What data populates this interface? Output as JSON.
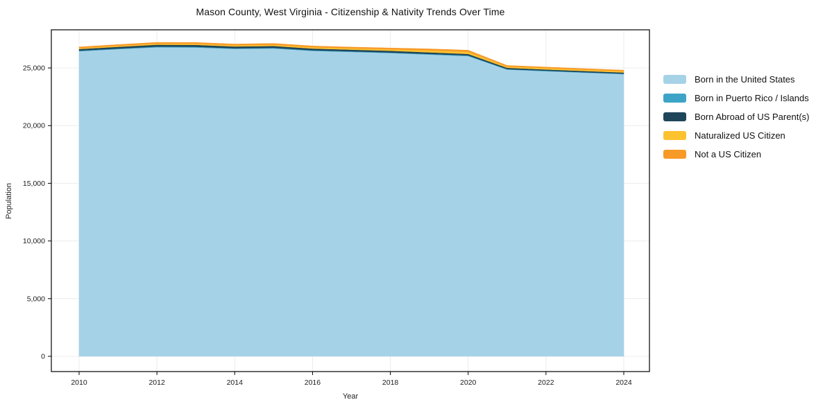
{
  "page": {
    "background_color": "#ffffff"
  },
  "chart_data": {
    "type": "area",
    "stacked": true,
    "title": "Mason County, West Virginia - Citizenship & Nativity Trends Over Time",
    "xlabel": "Year",
    "ylabel": "Population",
    "grid": true,
    "legend_position": "right-outside",
    "x": [
      2010,
      2011,
      2012,
      2013,
      2014,
      2015,
      2016,
      2017,
      2018,
      2019,
      2020,
      2021,
      2022,
      2023,
      2024
    ],
    "x_ticks": [
      2010,
      2012,
      2014,
      2016,
      2018,
      2020,
      2022,
      2024
    ],
    "y_ticks": [
      0,
      5000,
      10000,
      15000,
      20000,
      25000
    ],
    "y_tick_labels": [
      "0",
      "5,000",
      "10,000",
      "15,000",
      "20,000",
      "25,000"
    ],
    "ylim": [
      0,
      28300
    ],
    "series": [
      {
        "name": "Born in the United States",
        "color": "#a6d2e7",
        "values": [
          26450,
          26630,
          26790,
          26770,
          26650,
          26690,
          26480,
          26390,
          26290,
          26160,
          26030,
          24860,
          24720,
          24590,
          24460
        ]
      },
      {
        "name": "Born in Puerto Rico / Islands",
        "color": "#3da4c7",
        "values": [
          50,
          55,
          60,
          60,
          55,
          55,
          55,
          50,
          50,
          55,
          60,
          40,
          45,
          40,
          45
        ]
      },
      {
        "name": "Born Abroad of US Parent(s)",
        "color": "#1f455a",
        "values": [
          140,
          150,
          165,
          170,
          160,
          160,
          150,
          145,
          150,
          140,
          125,
          110,
          100,
          105,
          100
        ]
      },
      {
        "name": "Naturalized US Citizen",
        "color": "#fdc230",
        "values": [
          80,
          85,
          90,
          95,
          100,
          105,
          110,
          115,
          125,
          175,
          185,
          115,
          120,
          115,
          110
        ]
      },
      {
        "name": "Not a US Citizen",
        "color": "#f79a28",
        "values": [
          100,
          105,
          110,
          115,
          110,
          115,
          110,
          110,
          115,
          125,
          140,
          90,
          95,
          90,
          95
        ]
      }
    ]
  }
}
